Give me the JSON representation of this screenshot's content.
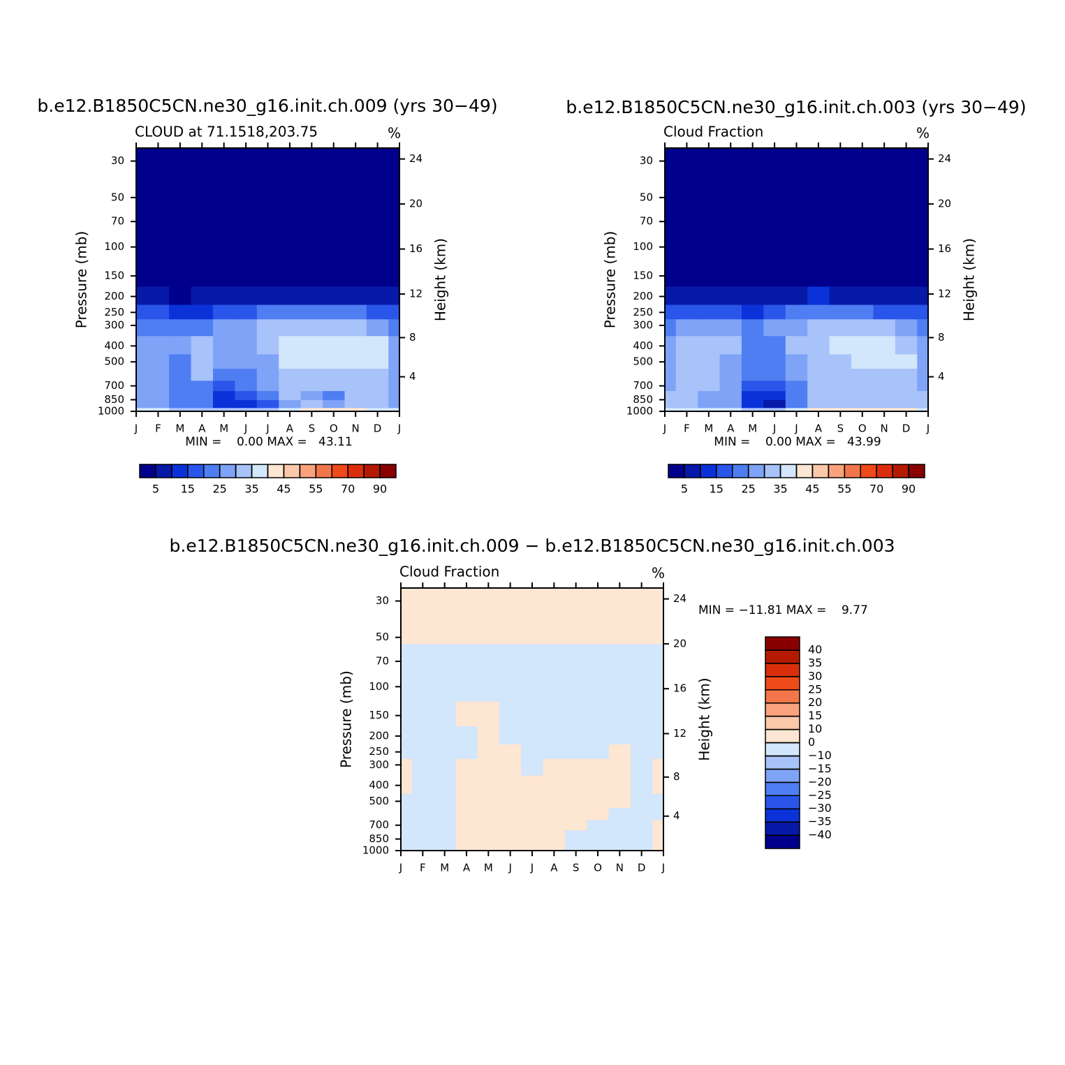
{
  "chart_data": [
    {
      "type": "contour",
      "title": "b.e12.B1850C5CN.ne30_g16.init.ch.009 (yrs 30−49)",
      "subtitle_left": "CLOUD at 71.1518,203.75",
      "subtitle_right": "%",
      "ylabel": "Pressure (mb)",
      "y2label": "Height (km)",
      "x": [
        "J",
        "F",
        "M",
        "A",
        "M",
        "J",
        "J",
        "A",
        "S",
        "O",
        "N",
        "D",
        "J"
      ],
      "y": [
        1000,
        900,
        800,
        700,
        600,
        500,
        400,
        300,
        250,
        200,
        150,
        100,
        30
      ],
      "ylog": true,
      "ylim": [
        1000,
        25
      ],
      "yticks": [
        1000,
        850,
        700,
        500,
        400,
        300,
        250,
        200,
        150,
        100,
        70,
        50,
        30
      ],
      "y2ticks": [
        4,
        8,
        12,
        16,
        20,
        24
      ],
      "z": [
        [
          36,
          36,
          34,
          34,
          32,
          32,
          32,
          38,
          40,
          41,
          40,
          38,
          36
        ],
        [
          28,
          26,
          22,
          20,
          10,
          10,
          18,
          28,
          30,
          28,
          30,
          30,
          28
        ],
        [
          28,
          26,
          24,
          22,
          14,
          16,
          22,
          30,
          29,
          22,
          30,
          30,
          28
        ],
        [
          28,
          26,
          22,
          24,
          18,
          20,
          26,
          31,
          31,
          30,
          30,
          30,
          28
        ],
        [
          28,
          27,
          22,
          30,
          22,
          22,
          28,
          33,
          33,
          33,
          32,
          31,
          28
        ],
        [
          29,
          28,
          24,
          32,
          26,
          26,
          28,
          36,
          38,
          38,
          38,
          36,
          29
        ],
        [
          27,
          27,
          26,
          33,
          28,
          28,
          32,
          36,
          38,
          38,
          38,
          36,
          27
        ],
        [
          22,
          22,
          20,
          24,
          25,
          26,
          30,
          33,
          34,
          32,
          30,
          28,
          22
        ],
        [
          16,
          16,
          12,
          14,
          15,
          18,
          20,
          22,
          22,
          22,
          20,
          18,
          16
        ],
        [
          8,
          8,
          4,
          5,
          6,
          7,
          8,
          9,
          9,
          9,
          8,
          8,
          8
        ],
        [
          2,
          2,
          2,
          2,
          2,
          2,
          2,
          2,
          2,
          2,
          2,
          2,
          2
        ],
        [
          1,
          1,
          1,
          1,
          1,
          1,
          1,
          1,
          1,
          1,
          1,
          1,
          1
        ],
        [
          0,
          0,
          0,
          0,
          0,
          0,
          0,
          0,
          0,
          0,
          0,
          0,
          0
        ]
      ],
      "annotation": "MIN =    0.00 MAX =   43.11",
      "colorbar_orientation": "horizontal",
      "levels": [
        5,
        10,
        15,
        20,
        25,
        30,
        35,
        40,
        45,
        50,
        55,
        60,
        70,
        80,
        90
      ],
      "colorbar_ticks": [
        5,
        15,
        25,
        35,
        45,
        55,
        70,
        90
      ],
      "colors": [
        "#00008c",
        "#0619a8",
        "#0a32d8",
        "#2a55ea",
        "#4f7ef2",
        "#7fa3f6",
        "#a8c2fa",
        "#d2e6fc",
        "#fde6d2",
        "#fcc8aa",
        "#f9a27c",
        "#f27649",
        "#ee4a1a",
        "#da2f0a",
        "#b51a00",
        "#8a0000"
      ]
    },
    {
      "type": "contour",
      "title": "b.e12.B1850C5CN.ne30_g16.init.ch.003 (yrs 30−49)",
      "subtitle_left": "Cloud Fraction",
      "subtitle_right": "%",
      "ylabel": "Pressure (mb)",
      "y2label": "Height (km)",
      "x": [
        "J",
        "F",
        "M",
        "A",
        "M",
        "J",
        "J",
        "A",
        "S",
        "O",
        "N",
        "D",
        "J"
      ],
      "y": [
        1000,
        900,
        800,
        700,
        600,
        500,
        400,
        300,
        250,
        200,
        150,
        100,
        30
      ],
      "ylog": true,
      "ylim": [
        1000,
        25
      ],
      "yticks": [
        1000,
        850,
        700,
        500,
        400,
        300,
        250,
        200,
        150,
        100,
        70,
        50,
        30
      ],
      "y2ticks": [
        4,
        8,
        12,
        16,
        20,
        24
      ],
      "z": [
        [
          38,
          38,
          36,
          36,
          34,
          34,
          36,
          40,
          42,
          44,
          42,
          40,
          38
        ],
        [
          30,
          30,
          26,
          26,
          12,
          8,
          20,
          30,
          32,
          30,
          30,
          30,
          30
        ],
        [
          30,
          32,
          28,
          26,
          14,
          12,
          24,
          30,
          30,
          30,
          32,
          30,
          30
        ],
        [
          28,
          33,
          30,
          27,
          18,
          16,
          24,
          30,
          30,
          30,
          34,
          30,
          28
        ],
        [
          28,
          33,
          30,
          26,
          20,
          22,
          26,
          30,
          30,
          32,
          34,
          32,
          28
        ],
        [
          28,
          34,
          32,
          28,
          22,
          24,
          28,
          32,
          34,
          36,
          36,
          36,
          28
        ],
        [
          28,
          32,
          32,
          30,
          24,
          24,
          30,
          34,
          36,
          36,
          36,
          34,
          28
        ],
        [
          24,
          26,
          26,
          25,
          24,
          26,
          28,
          32,
          32,
          32,
          30,
          28,
          24
        ],
        [
          16,
          18,
          18,
          16,
          14,
          18,
          22,
          22,
          22,
          20,
          18,
          18,
          16
        ],
        [
          8,
          8,
          6,
          5,
          5,
          7,
          9,
          10,
          9,
          8,
          7,
          8,
          8
        ],
        [
          2,
          2,
          2,
          2,
          2,
          2,
          2,
          2,
          2,
          2,
          2,
          2,
          2
        ],
        [
          1,
          1,
          1,
          1,
          1,
          1,
          1,
          1,
          1,
          1,
          1,
          1,
          1
        ],
        [
          0,
          0,
          0,
          0,
          0,
          0,
          0,
          0,
          0,
          0,
          0,
          0,
          0
        ]
      ],
      "annotation": "MIN =    0.00 MAX =   43.99",
      "colorbar_orientation": "horizontal",
      "levels": [
        5,
        10,
        15,
        20,
        25,
        30,
        35,
        40,
        45,
        50,
        55,
        60,
        70,
        80,
        90
      ],
      "colorbar_ticks": [
        5,
        15,
        25,
        35,
        45,
        55,
        70,
        90
      ],
      "colors": [
        "#00008c",
        "#0619a8",
        "#0a32d8",
        "#2a55ea",
        "#4f7ef2",
        "#7fa3f6",
        "#a8c2fa",
        "#d2e6fc",
        "#fde6d2",
        "#fcc8aa",
        "#f9a27c",
        "#f27649",
        "#ee4a1a",
        "#da2f0a",
        "#b51a00",
        "#8a0000"
      ]
    },
    {
      "type": "contour",
      "title": "b.e12.B1850C5CN.ne30_g16.init.ch.009 − b.e12.B1850C5CN.ne30_g16.init.ch.003",
      "subtitle_left": "Cloud Fraction",
      "subtitle_right": "%",
      "ylabel": "Pressure (mb)",
      "y2label": "Height (km)",
      "x": [
        "J",
        "F",
        "M",
        "A",
        "M",
        "J",
        "J",
        "A",
        "S",
        "O",
        "N",
        "D",
        "J"
      ],
      "y": [
        1000,
        900,
        800,
        700,
        600,
        500,
        400,
        300,
        250,
        200,
        150,
        100,
        30
      ],
      "ylog": true,
      "ylim": [
        1000,
        25
      ],
      "yticks": [
        1000,
        850,
        700,
        500,
        400,
        300,
        250,
        200,
        150,
        100,
        70,
        50,
        30
      ],
      "y2ticks": [
        4,
        8,
        12,
        16,
        20,
        24
      ],
      "z": [
        [
          -1,
          -1,
          -1,
          0.5,
          0.5,
          1,
          1,
          0.5,
          -1,
          -2,
          -1,
          -1,
          0.5
        ],
        [
          -1,
          -2,
          -2,
          1,
          3,
          3,
          2,
          1,
          -2,
          -3,
          -2,
          -1,
          0.5
        ],
        [
          -1,
          -2,
          -2,
          1,
          2,
          2,
          2,
          1,
          -1,
          -1,
          -2,
          -1,
          0.5
        ],
        [
          -1,
          -2,
          -2,
          1,
          2,
          2,
          2,
          1,
          1,
          -1,
          -1,
          -1,
          0.5
        ],
        [
          -1,
          -2,
          -2,
          1,
          1,
          1,
          1,
          1,
          1,
          1,
          -1,
          -1,
          -1
        ],
        [
          -1,
          -2,
          -2,
          0.5,
          0.5,
          0.5,
          0.5,
          0.5,
          0.5,
          0.5,
          0.5,
          -1,
          -1
        ],
        [
          0.5,
          -1,
          -1,
          0.5,
          0.5,
          0.5,
          0.5,
          0.5,
          0.5,
          0.5,
          0.5,
          -1,
          0.5
        ],
        [
          0.5,
          -1,
          -1,
          0.5,
          0.5,
          0.5,
          -0.5,
          0.5,
          0.5,
          0.5,
          0.5,
          -1,
          0.5
        ],
        [
          -1,
          -1,
          -1,
          -0.5,
          0.5,
          0.5,
          -1,
          -1,
          -1,
          -1,
          0.5,
          -1,
          -1
        ],
        [
          -1,
          -1,
          -1,
          -0.5,
          0.5,
          -1,
          -1,
          -1,
          -1,
          -1,
          -1,
          -1,
          -1
        ],
        [
          -1,
          -1,
          -1,
          0.5,
          0.5,
          -0.5,
          -1,
          -1,
          -1,
          -1,
          -1,
          -1,
          -1
        ],
        [
          -0.5,
          -0.5,
          -0.5,
          -0.5,
          -0.5,
          -0.5,
          -0.5,
          -0.5,
          -0.5,
          -0.5,
          -0.5,
          -0.5,
          -0.5
        ],
        [
          0.5,
          0.5,
          0.5,
          0.5,
          0.5,
          0.5,
          0.5,
          0.5,
          0.5,
          0.5,
          0.5,
          0.5,
          0.5
        ]
      ],
      "annotation": "MIN = −11.81 MAX =    9.77",
      "colorbar_orientation": "vertical",
      "levels": [
        -40,
        -35,
        -30,
        -25,
        -20,
        -15,
        -10,
        0,
        10,
        15,
        20,
        25,
        30,
        35,
        40
      ],
      "colorbar_ticks": [
        {
          "value": -40,
          "label": "−40"
        },
        {
          "value": -35,
          "label": "−35"
        },
        {
          "value": -30,
          "label": "−30"
        },
        {
          "value": -25,
          "label": "−25"
        },
        {
          "value": -20,
          "label": "−20"
        },
        {
          "value": -15,
          "label": "−15"
        },
        {
          "value": -10,
          "label": "−10"
        },
        0,
        10,
        15,
        20,
        25,
        30,
        35,
        40
      ],
      "colors": [
        "#00008c",
        "#0619a8",
        "#0a32d8",
        "#2a55ea",
        "#4f7ef2",
        "#7fa3f6",
        "#a8c2fa",
        "#d2e6fc",
        "#fde6d2",
        "#fcc8aa",
        "#f9a27c",
        "#f27649",
        "#ee4a1a",
        "#da2f0a",
        "#b51a00",
        "#8a0000"
      ]
    }
  ]
}
